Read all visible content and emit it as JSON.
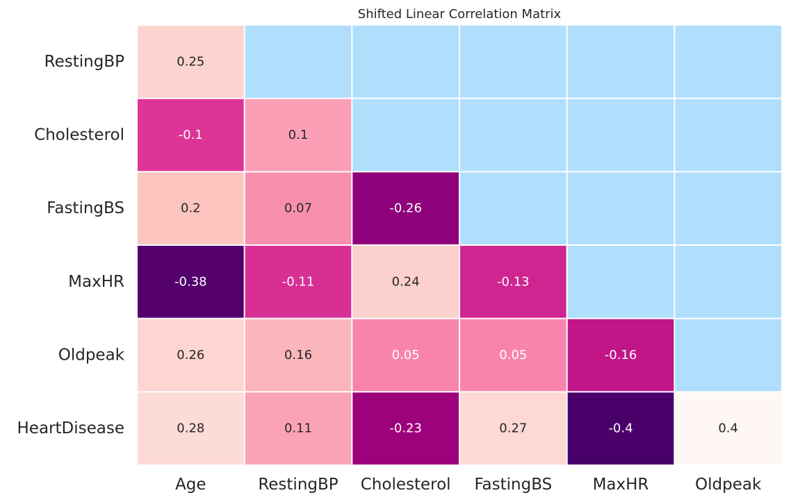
{
  "chart_data": {
    "type": "heatmap",
    "title": "Shifted Linear Correlation Matrix",
    "x_categories": [
      "Age",
      "RestingBP",
      "Cholesterol",
      "FastingBS",
      "MaxHR",
      "Oldpeak"
    ],
    "y_categories": [
      "RestingBP",
      "Cholesterol",
      "FastingBS",
      "MaxHR",
      "Oldpeak",
      "HeartDisease"
    ],
    "values": [
      [
        0.25,
        null,
        null,
        null,
        null,
        null
      ],
      [
        -0.1,
        0.1,
        null,
        null,
        null,
        null
      ],
      [
        0.2,
        0.07,
        -0.26,
        null,
        null,
        null
      ],
      [
        -0.38,
        -0.11,
        0.24,
        -0.13,
        null,
        null
      ],
      [
        0.26,
        0.16,
        0.05,
        0.05,
        -0.16,
        null
      ],
      [
        0.28,
        0.11,
        -0.23,
        0.27,
        -0.4,
        0.4
      ]
    ],
    "cell_labels": [
      [
        "0.25",
        "",
        "",
        "",
        "",
        ""
      ],
      [
        "-0.1",
        "0.1",
        "",
        "",
        "",
        ""
      ],
      [
        "0.2",
        "0.07",
        "-0.26",
        "",
        "",
        ""
      ],
      [
        "-0.38",
        "-0.11",
        "0.24",
        "-0.13",
        "",
        ""
      ],
      [
        "0.26",
        "0.16",
        "0.05",
        "0.05",
        "-0.16",
        ""
      ],
      [
        "0.28",
        "0.11",
        "-0.23",
        "0.27",
        "-0.4",
        "0.4"
      ]
    ],
    "masked_color": "#b0defd",
    "colormap": "RdPu_r",
    "colormap_stops": [
      "#49006a",
      "#7a0177",
      "#ae017e",
      "#dd3497",
      "#f768a1",
      "#fa9fb5",
      "#fcc5c0",
      "#fde0dd",
      "#fff7f3"
    ],
    "vmin": -0.4,
    "vmax": 0.4,
    "grid_line_color": "#ffffff",
    "colorbar": false
  }
}
